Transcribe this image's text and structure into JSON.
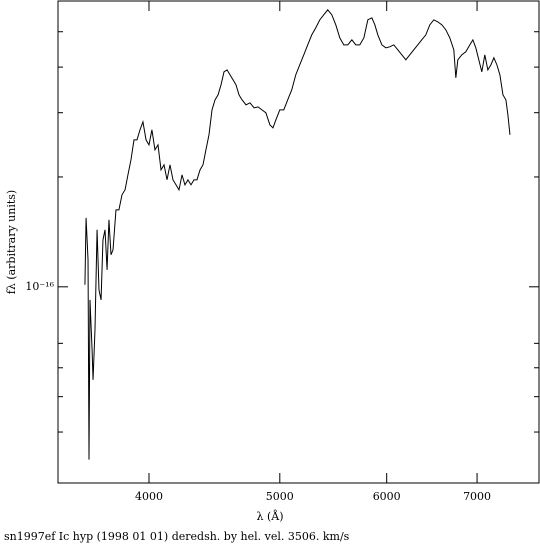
{
  "chart_data": {
    "type": "line",
    "title": "sn1997ef Ic hyp (1998 01 01) deredsh. by hel. vel.  3506. km/s",
    "x_label": "λ (Å)",
    "y_label": "fλ (arbitrary units)",
    "xscale": "log",
    "yscale": "log",
    "xlim": [
      3425,
      7780
    ],
    "ylim": [
      2.9e-17,
      6.07e-16
    ],
    "xticks": [
      4000,
      5000,
      6000,
      7000
    ],
    "yticks": [
      {
        "value": 1e-16,
        "label": "10⁻¹⁶"
      }
    ],
    "yminorticks": [
      4e-17,
      5e-17,
      6e-17,
      7e-17,
      2e-16,
      3e-16,
      4e-16,
      5e-16
    ],
    "color": "#000000",
    "x": [
      3586,
      3593,
      3605,
      3611,
      3617,
      3630,
      3636,
      3648,
      3661,
      3673,
      3686,
      3698,
      3711,
      3724,
      3736,
      3749,
      3762,
      3781,
      3800,
      3820,
      3840,
      3859,
      3879,
      3899,
      3919,
      3939,
      3959,
      3980,
      4000,
      4020,
      4041,
      4062,
      4083,
      4104,
      4125,
      4146,
      4167,
      4189,
      4210,
      4232,
      4253,
      4275,
      4297,
      4319,
      4341,
      4364,
      4386,
      4408,
      4431,
      4454,
      4477,
      4500,
      4523,
      4546,
      4570,
      4593,
      4617,
      4640,
      4664,
      4688,
      4720,
      4752,
      4785,
      4817,
      4850,
      4883,
      4916,
      4942,
      4967,
      5000,
      5034,
      5068,
      5103,
      5138,
      5173,
      5209,
      5244,
      5280,
      5316,
      5353,
      5389,
      5426,
      5464,
      5501,
      5539,
      5577,
      5615,
      5654,
      5692,
      5731,
      5771,
      5810,
      5850,
      5880,
      5910,
      5951,
      5991,
      6032,
      6073,
      6115,
      6157,
      6199,
      6241,
      6284,
      6327,
      6370,
      6414,
      6458,
      6502,
      6547,
      6592,
      6637,
      6682,
      6728,
      6751,
      6774,
      6820,
      6867,
      6914,
      6950,
      6985,
      7021,
      7057,
      7093,
      7130,
      7167,
      7204,
      7241,
      7278,
      7316,
      7353,
      7378,
      7404
    ],
    "values": [
      1.013e-16,
      1.545e-16,
      1.186e-16,
      3.36e-17,
      9.21e-17,
      6.72e-17,
      5.56e-17,
      7.62e-17,
      1.433e-16,
      9.81e-17,
      9.21e-17,
      1.345e-16,
      1.433e-16,
      1.113e-16,
      1.526e-16,
      1.224e-16,
      1.263e-16,
      1.625e-16,
      1.625e-16,
      1.787e-16,
      1.844e-16,
      2.027e-16,
      2.228e-16,
      2.527e-16,
      2.527e-16,
      2.692e-16,
      2.831e-16,
      2.527e-16,
      2.449e-16,
      2.692e-16,
      2.373e-16,
      2.449e-16,
      2.092e-16,
      2.159e-16,
      1.964e-16,
      2.159e-16,
      1.964e-16,
      1.903e-16,
      1.844e-16,
      2.027e-16,
      1.903e-16,
      1.964e-16,
      1.903e-16,
      1.964e-16,
      1.964e-16,
      2.092e-16,
      2.159e-16,
      2.373e-16,
      2.609e-16,
      3.054e-16,
      3.253e-16,
      3.357e-16,
      3.576e-16,
      3.882e-16,
      3.93e-16,
      3.809e-16,
      3.691e-16,
      3.576e-16,
      3.357e-16,
      3.253e-16,
      3.152e-16,
      3.192e-16,
      3.093e-16,
      3.112e-16,
      3.054e-16,
      2.997e-16,
      2.779e-16,
      2.727e-16,
      2.868e-16,
      3.054e-16,
      3.054e-16,
      3.253e-16,
      3.465e-16,
      3.809e-16,
      4.057e-16,
      4.321e-16,
      4.603e-16,
      4.901e-16,
      5.124e-16,
      5.389e-16,
      5.562e-16,
      5.741e-16,
      5.562e-16,
      5.222e-16,
      4.81e-16,
      4.603e-16,
      4.603e-16,
      4.75e-16,
      4.603e-16,
      4.603e-16,
      4.81e-16,
      5.389e-16,
      5.458e-16,
      5.222e-16,
      4.901e-16,
      4.603e-16,
      4.517e-16,
      4.546e-16,
      4.603e-16,
      4.461e-16,
      4.321e-16,
      4.187e-16,
      4.321e-16,
      4.461e-16,
      4.603e-16,
      4.75e-16,
      4.901e-16,
      5.222e-16,
      5.389e-16,
      5.321e-16,
      5.222e-16,
      5.06e-16,
      4.81e-16,
      4.461e-16,
      3.738e-16,
      4.187e-16,
      4.321e-16,
      4.405e-16,
      4.603e-16,
      4.75e-16,
      4.517e-16,
      4.187e-16,
      3.882e-16,
      4.321e-16,
      3.93e-16,
      4.057e-16,
      4.241e-16,
      4.057e-16,
      3.809e-16,
      3.357e-16,
      3.253e-16,
      2.959e-16,
      2.609e-16
    ]
  }
}
